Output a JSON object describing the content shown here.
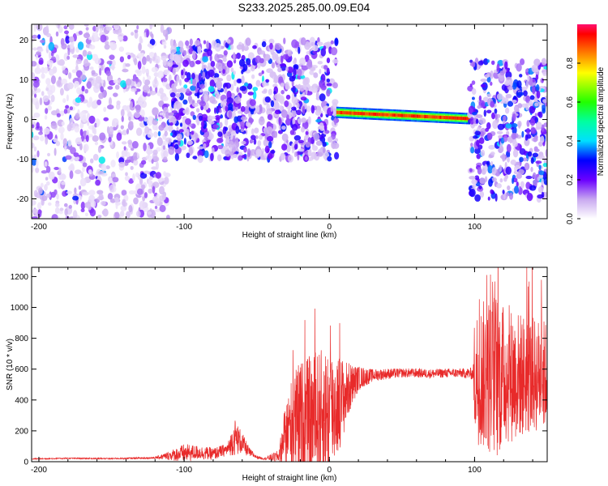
{
  "title": "S233.2025.285.00.09.E04",
  "chart_data": [
    {
      "type": "heatmap",
      "xlabel": "Height of straight line (km)",
      "ylabel": "Frequency (Hz)",
      "xlim": [
        -205,
        150
      ],
      "ylim": [
        -25,
        24
      ],
      "xticks": [
        -200,
        -100,
        0,
        100
      ],
      "yticks": [
        -20,
        -10,
        0,
        10,
        20
      ],
      "colorbar": {
        "label": "Normalized spectral amplitude",
        "range": [
          0.0,
          1.0
        ],
        "ticks": [
          0.0,
          0.2,
          0.4,
          0.6,
          0.8
        ]
      },
      "features": [
        {
          "name": "scattered noise",
          "x_range": [
            -205,
            -110
          ],
          "freq_range": [
            -25,
            24
          ],
          "amplitude": 0.1
        },
        {
          "name": "noisy band",
          "x_range": [
            -110,
            5
          ],
          "freq_range": [
            -10,
            20
          ],
          "amplitude": 0.18
        },
        {
          "name": "coherent signal",
          "x_range": [
            5,
            97
          ],
          "freq_start": 1.8,
          "freq_end": 0.2,
          "amplitude": 0.95
        },
        {
          "name": "noisy tail",
          "x_range": [
            97,
            150
          ],
          "freq_range": [
            -20,
            15
          ],
          "amplitude": 0.2
        }
      ]
    },
    {
      "type": "line",
      "xlabel": "Height of straight line (km)",
      "ylabel": "SNR (10 * v/v)",
      "xlim": [
        -205,
        150
      ],
      "ylim": [
        0,
        1260
      ],
      "xticks": [
        -200,
        -100,
        0,
        100
      ],
      "yticks": [
        0,
        200,
        400,
        600,
        800,
        1000,
        1200
      ],
      "series": [
        {
          "name": "SNR",
          "color": "#e82a2a",
          "x": [
            -205,
            -180,
            -150,
            -120,
            -110,
            -100,
            -90,
            -80,
            -70,
            -65,
            -60,
            -55,
            -50,
            -45,
            -35,
            -30,
            -25,
            -20,
            -10,
            0,
            10,
            14,
            20,
            30,
            40,
            50,
            60,
            70,
            80,
            90,
            99,
            100,
            105,
            110,
            115,
            120,
            130,
            140,
            150
          ],
          "y": [
            18,
            22,
            20,
            25,
            40,
            55,
            60,
            50,
            80,
            160,
            120,
            60,
            30,
            20,
            35,
            180,
            240,
            260,
            280,
            320,
            420,
            480,
            540,
            560,
            570,
            575,
            575,
            570,
            575,
            575,
            570,
            560,
            560,
            560,
            560,
            560,
            560,
            560,
            560
          ],
          "spread": [
            4,
            4,
            4,
            6,
            30,
            60,
            45,
            40,
            40,
            120,
            70,
            30,
            10,
            6,
            40,
            200,
            350,
            400,
            420,
            450,
            250,
            160,
            80,
            40,
            35,
            30,
            30,
            30,
            30,
            30,
            40,
            420,
            480,
            520,
            560,
            460,
            420,
            380,
            360
          ]
        }
      ]
    }
  ]
}
